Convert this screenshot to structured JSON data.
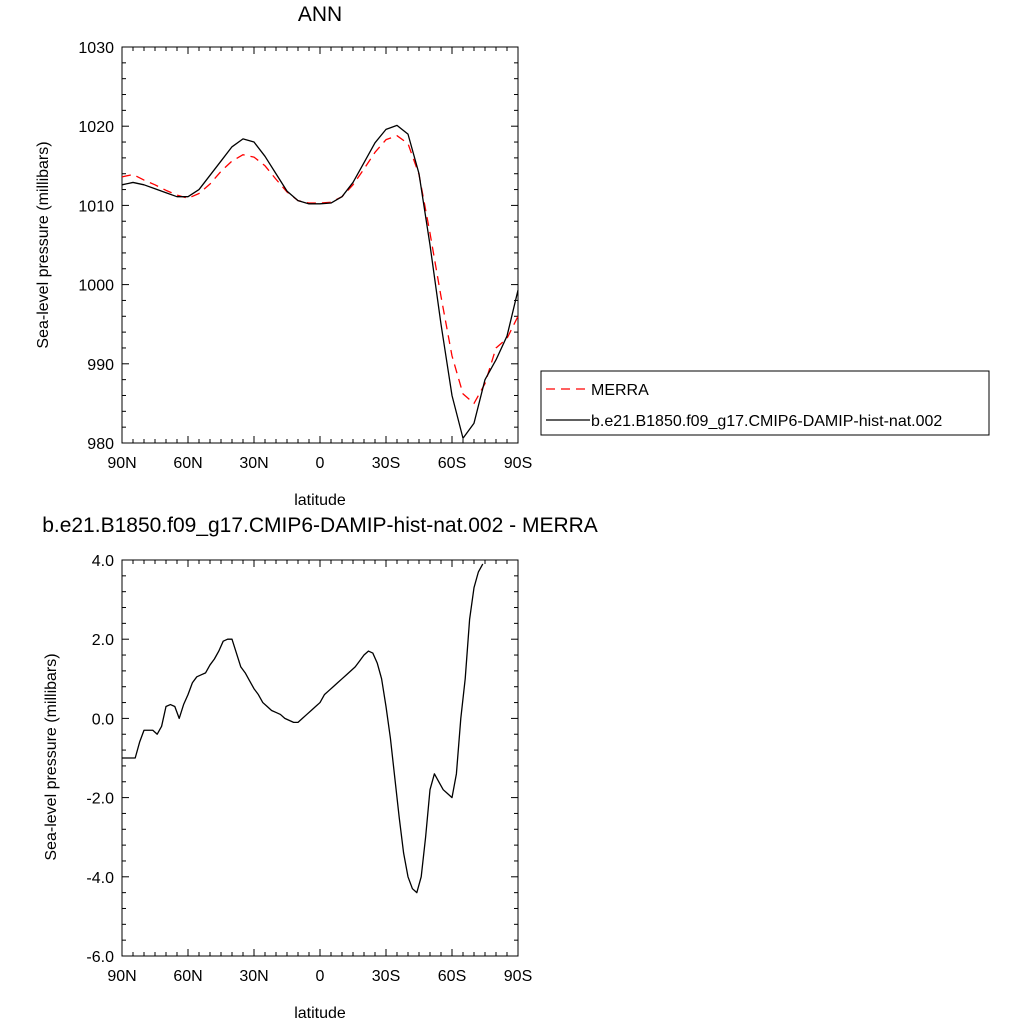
{
  "chart_data": [
    {
      "type": "line",
      "title": "ANN",
      "xlabel": "latitude",
      "ylabel": "Sea-level pressure (millibars)",
      "xlim": [
        90,
        -90
      ],
      "ylim": [
        980,
        1030
      ],
      "x_ticks": [
        90,
        60,
        30,
        0,
        -30,
        -60,
        -90
      ],
      "x_tick_labels": [
        "90N",
        "60N",
        "30N",
        "0",
        "30S",
        "60S",
        "90S"
      ],
      "y_ticks": [
        980,
        990,
        1000,
        1010,
        1020,
        1030
      ],
      "y_tick_labels": [
        "980",
        "990",
        "1000",
        "1010",
        "1020",
        "1030"
      ],
      "grid": false,
      "legend_position": "right",
      "series": [
        {
          "name": "MERRA",
          "color": "#ff0000",
          "dash": "dashed",
          "points": [
            [
              90,
              1013.6
            ],
            [
              85,
              1013.9
            ],
            [
              80,
              1013.2
            ],
            [
              75,
              1012.6
            ],
            [
              70,
              1011.9
            ],
            [
              65,
              1011.3
            ],
            [
              60,
              1010.9
            ],
            [
              55,
              1011.5
            ],
            [
              50,
              1012.7
            ],
            [
              45,
              1014.3
            ],
            [
              40,
              1015.6
            ],
            [
              35,
              1016.4
            ],
            [
              30,
              1016.1
            ],
            [
              25,
              1015.0
            ],
            [
              20,
              1013.3
            ],
            [
              15,
              1011.7
            ],
            [
              10,
              1010.6
            ],
            [
              5,
              1010.3
            ],
            [
              0,
              1010.3
            ],
            [
              -5,
              1010.4
            ],
            [
              -10,
              1011.1
            ],
            [
              -15,
              1012.6
            ],
            [
              -20,
              1014.6
            ],
            [
              -25,
              1016.7
            ],
            [
              -30,
              1018.3
            ],
            [
              -35,
              1018.8
            ],
            [
              -40,
              1017.8
            ],
            [
              -45,
              1013.9
            ],
            [
              -50,
              1006.5
            ],
            [
              -55,
              998.5
            ],
            [
              -60,
              991.0
            ],
            [
              -65,
              986.2
            ],
            [
              -70,
              985.0
            ],
            [
              -75,
              987.5
            ],
            [
              -80,
              992.0
            ],
            [
              -85,
              993.2
            ],
            [
              -90,
              996.0
            ]
          ]
        },
        {
          "name": "b.e21.B1850.f09_g17.CMIP6-DAMIP-hist-nat.002",
          "color": "#000000",
          "dash": "solid",
          "points": [
            [
              90,
              1012.6
            ],
            [
              85,
              1012.9
            ],
            [
              80,
              1012.6
            ],
            [
              75,
              1012.1
            ],
            [
              70,
              1011.6
            ],
            [
              65,
              1011.1
            ],
            [
              60,
              1011.1
            ],
            [
              55,
              1012.0
            ],
            [
              50,
              1013.8
            ],
            [
              45,
              1015.6
            ],
            [
              40,
              1017.4
            ],
            [
              35,
              1018.4
            ],
            [
              30,
              1018.0
            ],
            [
              25,
              1016.2
            ],
            [
              20,
              1014.0
            ],
            [
              15,
              1011.8
            ],
            [
              10,
              1010.6
            ],
            [
              5,
              1010.2
            ],
            [
              0,
              1010.2
            ],
            [
              -5,
              1010.3
            ],
            [
              -10,
              1011.1
            ],
            [
              -15,
              1012.9
            ],
            [
              -20,
              1015.4
            ],
            [
              -25,
              1017.9
            ],
            [
              -30,
              1019.6
            ],
            [
              -35,
              1020.1
            ],
            [
              -40,
              1019.0
            ],
            [
              -45,
              1014.0
            ],
            [
              -50,
              1005.0
            ],
            [
              -55,
              995.0
            ],
            [
              -60,
              986.0
            ],
            [
              -65,
              980.6
            ],
            [
              -70,
              982.5
            ],
            [
              -75,
              988.0
            ],
            [
              -80,
              990.5
            ],
            [
              -85,
              993.5
            ],
            [
              -90,
              999.3
            ]
          ]
        }
      ]
    },
    {
      "type": "line",
      "title": "b.e21.B1850.f09_g17.CMIP6-DAMIP-hist-nat.002 - MERRA",
      "xlabel": "latitude",
      "ylabel": "Sea-level pressure (millibars)",
      "xlim": [
        90,
        -90
      ],
      "ylim": [
        -6.0,
        4.0
      ],
      "x_ticks": [
        90,
        60,
        30,
        0,
        -30,
        -60,
        -90
      ],
      "x_tick_labels": [
        "90N",
        "60N",
        "30N",
        "0",
        "30S",
        "60S",
        "90S"
      ],
      "y_ticks": [
        -6,
        -4,
        -2,
        0,
        2,
        4
      ],
      "y_tick_labels": [
        "-6.0",
        "-4.0",
        "-2.0",
        "0.0",
        "2.0",
        "4.0"
      ],
      "grid": false,
      "series": [
        {
          "color": "#000000",
          "dash": "solid",
          "points": [
            [
              90,
              -1.0
            ],
            [
              86,
              -1.0
            ],
            [
              84,
              -1.0
            ],
            [
              82,
              -0.6
            ],
            [
              80,
              -0.3
            ],
            [
              78,
              -0.3
            ],
            [
              76,
              -0.3
            ],
            [
              74,
              -0.4
            ],
            [
              72,
              -0.2
            ],
            [
              70,
              0.3
            ],
            [
              68,
              0.35
            ],
            [
              66,
              0.3
            ],
            [
              64,
              0.0
            ],
            [
              62,
              0.35
            ],
            [
              60,
              0.6
            ],
            [
              58,
              0.9
            ],
            [
              56,
              1.05
            ],
            [
              54,
              1.1
            ],
            [
              52,
              1.15
            ],
            [
              50,
              1.35
            ],
            [
              48,
              1.5
            ],
            [
              46,
              1.7
            ],
            [
              44,
              1.95
            ],
            [
              42,
              2.0
            ],
            [
              40,
              2.0
            ],
            [
              38,
              1.65
            ],
            [
              36,
              1.3
            ],
            [
              34,
              1.15
            ],
            [
              32,
              0.95
            ],
            [
              30,
              0.75
            ],
            [
              28,
              0.6
            ],
            [
              26,
              0.4
            ],
            [
              24,
              0.3
            ],
            [
              22,
              0.2
            ],
            [
              20,
              0.15
            ],
            [
              18,
              0.1
            ],
            [
              16,
              0.0
            ],
            [
              14,
              -0.05
            ],
            [
              12,
              -0.1
            ],
            [
              10,
              -0.1
            ],
            [
              8,
              0.0
            ],
            [
              6,
              0.1
            ],
            [
              4,
              0.2
            ],
            [
              2,
              0.3
            ],
            [
              0,
              0.4
            ],
            [
              -2,
              0.6
            ],
            [
              -4,
              0.7
            ],
            [
              -6,
              0.8
            ],
            [
              -8,
              0.9
            ],
            [
              -10,
              1.0
            ],
            [
              -12,
              1.1
            ],
            [
              -14,
              1.2
            ],
            [
              -16,
              1.3
            ],
            [
              -18,
              1.45
            ],
            [
              -20,
              1.6
            ],
            [
              -22,
              1.7
            ],
            [
              -24,
              1.65
            ],
            [
              -26,
              1.4
            ],
            [
              -28,
              1.0
            ],
            [
              -30,
              0.3
            ],
            [
              -32,
              -0.5
            ],
            [
              -34,
              -1.5
            ],
            [
              -36,
              -2.5
            ],
            [
              -38,
              -3.4
            ],
            [
              -40,
              -4.0
            ],
            [
              -42,
              -4.3
            ],
            [
              -44,
              -4.4
            ],
            [
              -46,
              -4.0
            ],
            [
              -48,
              -3.0
            ],
            [
              -50,
              -1.8
            ],
            [
              -52,
              -1.4
            ],
            [
              -54,
              -1.6
            ],
            [
              -56,
              -1.8
            ],
            [
              -58,
              -1.9
            ],
            [
              -60,
              -2.0
            ],
            [
              -62,
              -1.4
            ],
            [
              -64,
              0.0
            ],
            [
              -66,
              1.0
            ],
            [
              -68,
              2.5
            ],
            [
              -70,
              3.3
            ],
            [
              -72,
              3.7
            ],
            [
              -74,
              3.9
            ]
          ]
        }
      ]
    }
  ]
}
